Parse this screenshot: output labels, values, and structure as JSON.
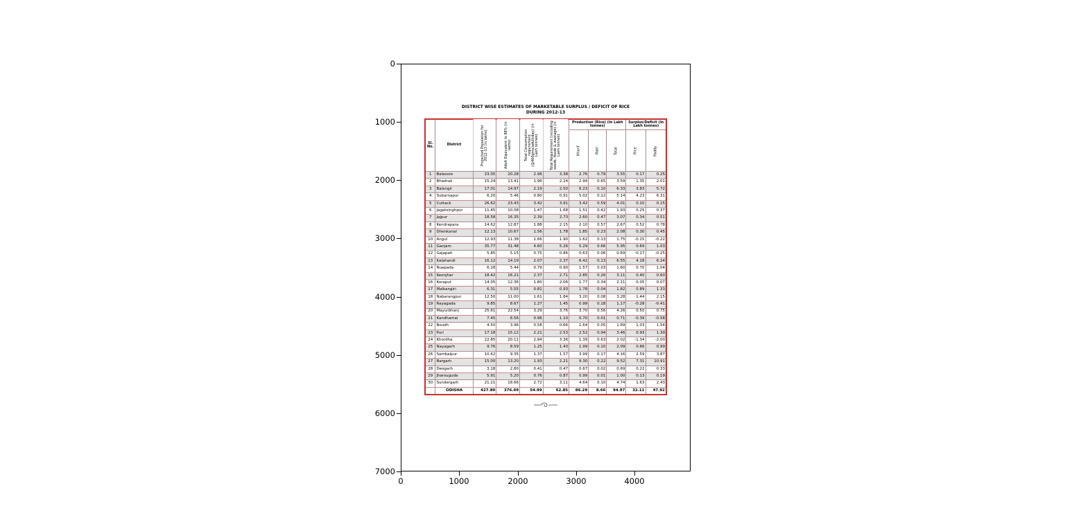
{
  "figure": {
    "y_ticks": [
      "0",
      "1000",
      "2000",
      "3000",
      "4000",
      "5000",
      "6000",
      "7000"
    ],
    "x_ticks": [
      "0",
      "1000",
      "2000",
      "3000",
      "4000"
    ]
  },
  "document": {
    "title_line1": "DISTRICT WISE ESTIMATES OF MARKETABLE SURPLUS / DEFICIT OF RICE",
    "title_line2": "DURING 2012-13"
  },
  "chart_data": {
    "type": "table",
    "title": "DISTRICT WISE ESTIMATES OF MARKETABLE SURPLUS / DEFICIT OF RICE DURING 2012-13",
    "columns": {
      "sl": "Sl. No.",
      "district": "District",
      "population": "Projected Population for 2012-13 (in lakhs)",
      "adult": "Adult Equivalent to 88% (in lakhs)",
      "consumption": "Total Consumption requirement (@400gms/adult/day) (in Lakh tonnes)",
      "requirement": "Total Requirement (including seeds, feeds & wastage) (in Lakh tonnes)",
      "production_group": "Production (Rice) (In Lakh tonnes)",
      "kharif": "Kharif",
      "rabi": "Rabi",
      "total": "Total",
      "surplus_group": "Surplus/Deficit (In Lakh tonnes)",
      "rice": "Rice",
      "paddy": "Paddy"
    },
    "rows": [
      [
        "1",
        "Balasore",
        "23.05",
        "20.28",
        "2.96",
        "3.38",
        "2.76",
        "0.79",
        "3.55",
        "0.17",
        "0.25"
      ],
      [
        "2",
        "Bhadrak",
        "15.24",
        "13.41",
        "1.96",
        "2.24",
        "2.94",
        "0.65",
        "3.59",
        "1.35",
        "2.01"
      ],
      [
        "3",
        "Balangir",
        "17.01",
        "14.97",
        "2.19",
        "2.50",
        "6.23",
        "0.10",
        "6.33",
        "3.83",
        "5.72"
      ],
      [
        "4",
        "Subarnapur",
        "6.20",
        "5.46",
        "0.80",
        "0.91",
        "5.02",
        "0.12",
        "5.14",
        "4.23",
        "6.31"
      ],
      [
        "5",
        "Cuttack",
        "26.62",
        "23.43",
        "3.42",
        "3.91",
        "3.42",
        "0.59",
        "4.01",
        "0.10",
        "0.15"
      ],
      [
        "6",
        "Jagatsinghpur",
        "11.45",
        "10.08",
        "1.47",
        "1.68",
        "1.51",
        "0.42",
        "1.93",
        "0.25",
        "0.37"
      ],
      [
        "7",
        "Jajpur",
        "18.58",
        "16.35",
        "2.39",
        "2.73",
        "2.60",
        "0.47",
        "3.07",
        "0.34",
        "0.51"
      ],
      [
        "8",
        "Kendrapara",
        "14.62",
        "12.87",
        "1.88",
        "2.15",
        "2.10",
        "0.57",
        "2.67",
        "0.52",
        "0.78"
      ],
      [
        "9",
        "Dhenkanal",
        "12.13",
        "10.67",
        "1.56",
        "1.78",
        "1.85",
        "0.23",
        "2.08",
        "0.30",
        "0.45"
      ],
      [
        "10",
        "Angul",
        "12.93",
        "11.38",
        "1.66",
        "1.90",
        "1.62",
        "0.13",
        "1.75",
        "-0.15",
        "-0.22"
      ],
      [
        "11",
        "Ganjam",
        "35.77",
        "31.48",
        "4.60",
        "5.26",
        "5.29",
        "0.66",
        "5.95",
        "0.69",
        "1.03"
      ],
      [
        "12",
        "Gajapati",
        "5.85",
        "5.15",
        "0.75",
        "0.86",
        "0.63",
        "0.06",
        "0.69",
        "-0.17",
        "-0.25"
      ],
      [
        "13",
        "Kalahandi",
        "16.12",
        "14.19",
        "2.07",
        "2.37",
        "6.42",
        "0.13",
        "6.55",
        "4.18",
        "6.24"
      ],
      [
        "14",
        "Nuapada",
        "6.18",
        "5.44",
        "0.79",
        "0.90",
        "1.57",
        "0.03",
        "1.60",
        "0.70",
        "1.04"
      ],
      [
        "15",
        "Keonjhar",
        "18.42",
        "16.21",
        "2.37",
        "2.71",
        "2.85",
        "0.26",
        "3.11",
        "0.40",
        "0.60"
      ],
      [
        "16",
        "Koraput",
        "14.05",
        "12.36",
        "1.80",
        "2.06",
        "1.77",
        "0.34",
        "2.11",
        "0.05",
        "0.07"
      ],
      [
        "17",
        "Malkangiri",
        "6.31",
        "5.55",
        "0.81",
        "0.93",
        "1.78",
        "0.04",
        "1.82",
        "0.89",
        "1.33"
      ],
      [
        "18",
        "Nabarangpur",
        "12.50",
        "11.00",
        "1.61",
        "1.84",
        "3.20",
        "0.08",
        "3.28",
        "1.44",
        "2.15"
      ],
      [
        "19",
        "Rayagada",
        "9.85",
        "8.67",
        "1.27",
        "1.45",
        "0.99",
        "0.18",
        "1.17",
        "-0.28",
        "-0.41"
      ],
      [
        "20",
        "Mayurbhanj",
        "25.61",
        "22.54",
        "3.29",
        "3.76",
        "3.70",
        "0.56",
        "4.26",
        "0.50",
        "0.75"
      ],
      [
        "21",
        "Kandhamal",
        "7.45",
        "6.56",
        "0.96",
        "1.10",
        "0.70",
        "0.01",
        "0.71",
        "-0.39",
        "-0.58"
      ],
      [
        "22",
        "Boudh",
        "4.50",
        "3.96",
        "0.58",
        "0.66",
        "1.64",
        "0.05",
        "1.69",
        "1.03",
        "1.54"
      ],
      [
        "23",
        "Puri",
        "17.18",
        "15.12",
        "2.21",
        "2.53",
        "2.52",
        "0.94",
        "3.46",
        "0.93",
        "1.39"
      ],
      [
        "24",
        "Khordha",
        "22.85",
        "20.11",
        "2.94",
        "3.36",
        "1.39",
        "0.63",
        "2.02",
        "-1.34",
        "-2.00"
      ],
      [
        "25",
        "Nayagarh",
        "9.76",
        "8.59",
        "1.25",
        "1.43",
        "1.99",
        "0.10",
        "2.09",
        "0.66",
        "0.99"
      ],
      [
        "26",
        "Sambalpur",
        "10.62",
        "9.35",
        "1.37",
        "1.57",
        "3.99",
        "0.17",
        "4.16",
        "2.59",
        "3.87"
      ],
      [
        "27",
        "Bargarh",
        "15.00",
        "13.20",
        "1.93",
        "2.21",
        "9.30",
        "0.22",
        "9.52",
        "7.31",
        "10.91"
      ],
      [
        "28",
        "Deogarh",
        "3.18",
        "2.80",
        "0.41",
        "0.47",
        "0.67",
        "0.02",
        "0.69",
        "0.22",
        "0.33"
      ],
      [
        "29",
        "Jharsuguda",
        "5.91",
        "5.20",
        "0.76",
        "0.87",
        "0.99",
        "0.01",
        "1.00",
        "0.13",
        "0.19"
      ],
      [
        "30",
        "Sundergarh",
        "21.21",
        "18.66",
        "2.72",
        "3.11",
        "4.64",
        "0.10",
        "4.74",
        "1.63",
        "2.43"
      ]
    ],
    "total_row": [
      "",
      "ODISHA",
      "427.80",
      "376.49",
      "54.99",
      "62.85",
      "86.29",
      "8.66",
      "94.97",
      "32.11",
      "47.92"
    ]
  }
}
